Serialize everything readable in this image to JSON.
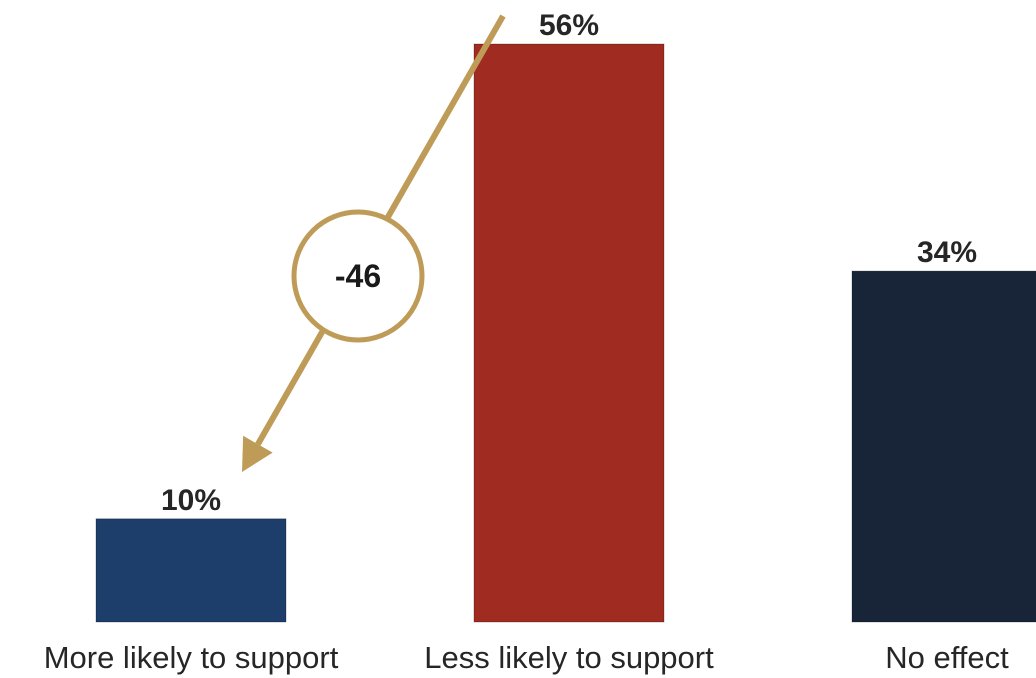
{
  "chart_data": {
    "type": "bar",
    "categories": [
      "More likely to support",
      "Less likely to support",
      "No effect"
    ],
    "values": [
      10,
      56,
      34
    ],
    "value_labels": [
      "10%",
      "56%",
      "34%"
    ],
    "bar_colors": [
      "#1d3d6b",
      "#a02c21",
      "#182539"
    ],
    "title": "",
    "xlabel": "",
    "ylabel": "",
    "ylim": [
      0,
      56
    ],
    "grid": false,
    "legend": "none",
    "annotation": {
      "text": "-46",
      "from_category": "Less likely to support",
      "to_category": "More likely to support",
      "color": "#bf9b58"
    }
  }
}
